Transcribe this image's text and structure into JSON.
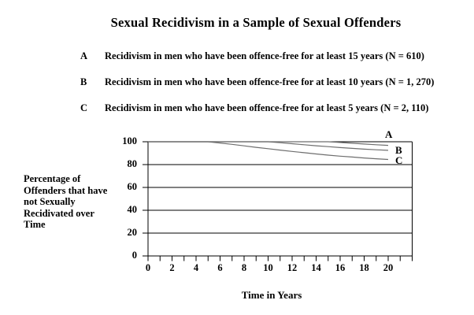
{
  "title": "Sexual Recidivism in a Sample of Sexual Offenders",
  "legend": [
    {
      "letter": "A",
      "description": "Recidivism in men who have been offence-free for at least 15 years (N = 610)"
    },
    {
      "letter": "B",
      "description": "Recidivism in men who have been offence-free for at least 10 years (N = 1, 270)"
    },
    {
      "letter": "C",
      "description": "Recidivism in men who have been offence-free for at least 5 years (N = 2, 110)"
    }
  ],
  "y_axis_label": "Percentage of\nOffenders that have\nnot Sexually\nRecidivated over\nTime",
  "x_axis_label": "Time in Years",
  "colors": {
    "background": "#ffffff",
    "text": "#000000",
    "axis": "#000000",
    "curve": "#6e6e6e"
  },
  "chart_data": {
    "type": "line",
    "title": "Sexual Recidivism in a Sample of Sexual Offenders",
    "xlabel": "Time in Years",
    "ylabel": "Percentage of Offenders that have not Sexually Recidivated over Time",
    "xlim": [
      0,
      22
    ],
    "ylim": [
      0,
      100
    ],
    "x_tick_labels": [
      0,
      2,
      4,
      6,
      8,
      10,
      12,
      14,
      16,
      18,
      20
    ],
    "x_minor_tick_step": 1,
    "y_tick_labels": [
      100,
      80,
      60,
      40,
      20,
      0
    ],
    "grid": "horizontal",
    "legend_position": "curve-end-labels",
    "series": [
      {
        "name": "A",
        "offence_free_years": 15,
        "n": "610",
        "points": [
          [
            0,
            100
          ],
          [
            15,
            100
          ],
          [
            16,
            99.4
          ],
          [
            17,
            98.7
          ],
          [
            18,
            98.0
          ],
          [
            19,
            97.4
          ],
          [
            20,
            96.8
          ]
        ]
      },
      {
        "name": "B",
        "offence_free_years": 10,
        "n": "1, 270",
        "points": [
          [
            0,
            100
          ],
          [
            10,
            100
          ],
          [
            11,
            99.2
          ],
          [
            12,
            98.3
          ],
          [
            13,
            97.4
          ],
          [
            14,
            96.5
          ],
          [
            15,
            95.7
          ],
          [
            16,
            94.9
          ],
          [
            17,
            94.2
          ],
          [
            18,
            93.5
          ],
          [
            19,
            93.0
          ],
          [
            20,
            92.5
          ]
        ]
      },
      {
        "name": "C",
        "offence_free_years": 5,
        "n": "2, 110",
        "points": [
          [
            0,
            100
          ],
          [
            5,
            100
          ],
          [
            6,
            98.9
          ],
          [
            7,
            97.7
          ],
          [
            8,
            96.4
          ],
          [
            9,
            95.1
          ],
          [
            10,
            93.9
          ],
          [
            11,
            92.7
          ],
          [
            12,
            91.5
          ],
          [
            13,
            90.4
          ],
          [
            14,
            89.3
          ],
          [
            15,
            88.3
          ],
          [
            16,
            87.4
          ],
          [
            17,
            86.6
          ],
          [
            18,
            85.8
          ],
          [
            19,
            85.1
          ],
          [
            20,
            84.5
          ]
        ]
      }
    ]
  }
}
